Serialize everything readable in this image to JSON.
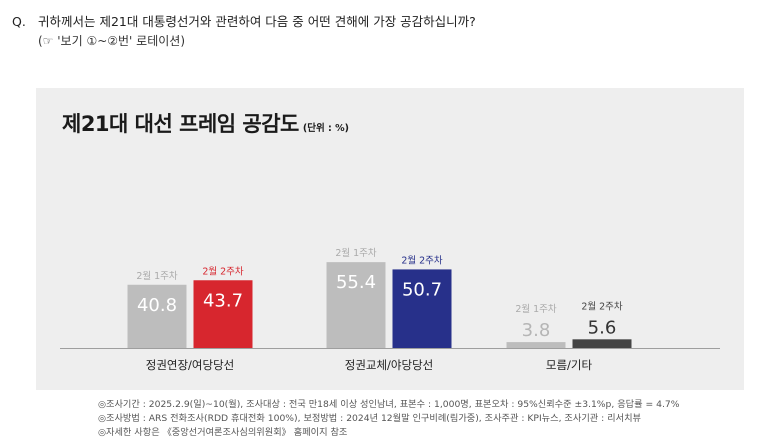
{
  "question": {
    "marker": "Q.",
    "text": "귀하께서는 제21대 대통령선거와 관련하여 다음 중 어떤 견해에 가장 공감하십니까?",
    "sub": "(☞ '보기 ①~②번' 로테이션)"
  },
  "chart_data": {
    "type": "bar",
    "title": "제21대 대선 프레임 공감도",
    "unit": "(단위 : %)",
    "categories": [
      "정권연장/여당당선",
      "정권교체/야당당선",
      "모름/기타"
    ],
    "series": [
      {
        "name": "2월 1주차",
        "values": [
          40.8,
          55.4,
          3.8
        ]
      },
      {
        "name": "2월 2주차",
        "values": [
          43.7,
          50.7,
          5.6
        ]
      }
    ],
    "series_labels": [
      [
        "2월 1주차",
        "2월 2주차"
      ],
      [
        "2월 1주차",
        "2월 2주차"
      ],
      [
        "2월 1주차",
        "2월 2주차"
      ]
    ],
    "colors": {
      "week1": "#bdbdbd",
      "week1_label": "#aaaaaa",
      "week2": [
        "#d7262e",
        "#27308a",
        "#444444"
      ],
      "week2_label": [
        "#d7262e",
        "#27308a",
        "#444444"
      ]
    },
    "ylim": [
      0,
      60
    ],
    "legend": "none",
    "grid": false
  },
  "notes": [
    "◎조사기간 : 2025.2.9(일)~10(월), 조사대상 : 전국 만18세 이상 성인남녀, 표본수 : 1,000명, 표본오차 : 95%신뢰수준 ±3.1%p, 응답률 = 4.7%",
    "◎조사방법 : ARS 전화조사(RDD 휴대전화 100%), 보정방법 : 2024년 12월말 인구비례(림가중), 조사주관 : KPI뉴스, 조사기관 : 리서치뷰",
    "◎자세한 사항은 《중앙선거여론조사심의위원회》 홈페이지 참조"
  ]
}
